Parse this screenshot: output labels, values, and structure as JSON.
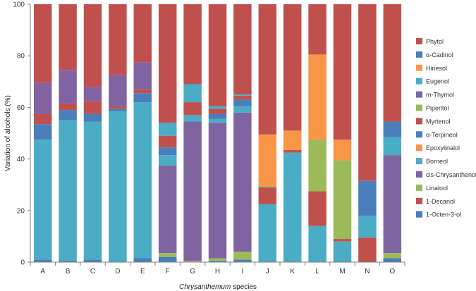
{
  "chart_data": {
    "type": "bar",
    "stacked": true,
    "title": "",
    "xlabel_italic": "Chrysanthemum",
    "xlabel_rest": " species",
    "ylabel": "Variation of alcohols (%)",
    "ylim": [
      0,
      100
    ],
    "yticks": [
      0,
      20,
      40,
      60,
      80,
      100
    ],
    "categories": [
      "A",
      "B",
      "C",
      "D",
      "E",
      "F",
      "G",
      "H",
      "I",
      "J",
      "K",
      "L",
      "M",
      "N",
      "O"
    ],
    "series": [
      {
        "name": "1-Octen-3-ol",
        "color": "#4a7ebb",
        "values": [
          1,
          0.5,
          1,
          0,
          1.5,
          2,
          0,
          0.5,
          1,
          0,
          0,
          0,
          0,
          0,
          1.5
        ]
      },
      {
        "name": "1-Decanol",
        "color": "#c0504d",
        "values": [
          0,
          0,
          0,
          0,
          0,
          0,
          0,
          0,
          0,
          0,
          0,
          0,
          0,
          9.5,
          0
        ]
      },
      {
        "name": "Linalool",
        "color": "#9bbb59",
        "values": [
          0,
          0,
          0,
          0,
          0,
          1.5,
          0.5,
          1,
          3,
          0,
          0,
          0,
          0,
          0,
          2
        ]
      },
      {
        "name": "cis-Chrysanthenol",
        "color": "#8064a2",
        "values": [
          0,
          0,
          0,
          0,
          0,
          34,
          54,
          52.5,
          54,
          0,
          0,
          0,
          0,
          0,
          38
        ]
      },
      {
        "name": "Borneol",
        "color": "#4bacc6",
        "values": [
          46.5,
          54.5,
          53.5,
          58.5,
          60.5,
          4,
          2.5,
          1.5,
          2.5,
          22.5,
          42.5,
          14,
          8,
          8.5,
          7
        ]
      },
      {
        "name": "Epoxylinalol",
        "color": "#f79646",
        "values": [
          0,
          0,
          0,
          0,
          0,
          0,
          0,
          0,
          0,
          0,
          0,
          0,
          0,
          0,
          0
        ]
      },
      {
        "name": "α-Terpineol",
        "color": "#4a7ebb",
        "values": [
          6,
          4,
          3,
          1,
          3.5,
          3,
          0,
          2,
          2.5,
          0,
          0,
          0,
          0,
          13.5,
          6
        ]
      },
      {
        "name": "Myrtenol",
        "color": "#c0504d",
        "values": [
          4,
          2.5,
          5,
          1,
          1.5,
          4.5,
          5,
          2,
          1.5,
          6.5,
          1,
          13.5,
          1,
          0,
          0
        ]
      },
      {
        "name": "Piperitol",
        "color": "#9bbb59",
        "values": [
          0,
          0,
          0,
          0,
          0,
          0,
          0,
          0,
          0,
          0.5,
          0,
          20,
          30.5,
          0,
          0
        ]
      },
      {
        "name": "m-Thymol",
        "color": "#8064a2",
        "values": [
          12,
          13,
          5.5,
          12,
          10.5,
          0,
          0,
          0,
          0,
          0,
          0,
          0,
          0,
          0,
          0
        ]
      },
      {
        "name": "Eugenol",
        "color": "#4bacc6",
        "values": [
          0,
          0,
          0,
          0,
          0,
          5,
          7,
          1,
          0.5,
          0,
          0,
          0,
          0,
          0,
          0
        ]
      },
      {
        "name": "Hinesol",
        "color": "#f79646",
        "values": [
          0,
          0,
          0,
          0,
          0,
          0,
          0,
          0,
          0,
          20,
          7.5,
          33,
          8,
          0,
          0
        ]
      },
      {
        "name": "α-Cadinol",
        "color": "#4a7ebb",
        "values": [
          0,
          0,
          0,
          0,
          0,
          0,
          0,
          0,
          0,
          0,
          0,
          0,
          0,
          0,
          0
        ]
      },
      {
        "name": "Phytol",
        "color": "#c0504d",
        "values": [
          30.5,
          25.5,
          32,
          27.5,
          22.5,
          46,
          31,
          39.5,
          35,
          50.5,
          49,
          19.5,
          52.5,
          68.5,
          45.5
        ]
      }
    ],
    "legend_position": "right",
    "legend_order": [
      "Phytol",
      "α-Cadinol",
      "Hinesol",
      "Eugenol",
      "m-Thymol",
      "Piperitol",
      "Myrtenol",
      "α-Terpineol",
      "Epoxylinalol",
      "Borneol",
      "cis-Chrysanthenol",
      "Linalool",
      "1-Decanol",
      "1-Octen-3-ol"
    ]
  }
}
